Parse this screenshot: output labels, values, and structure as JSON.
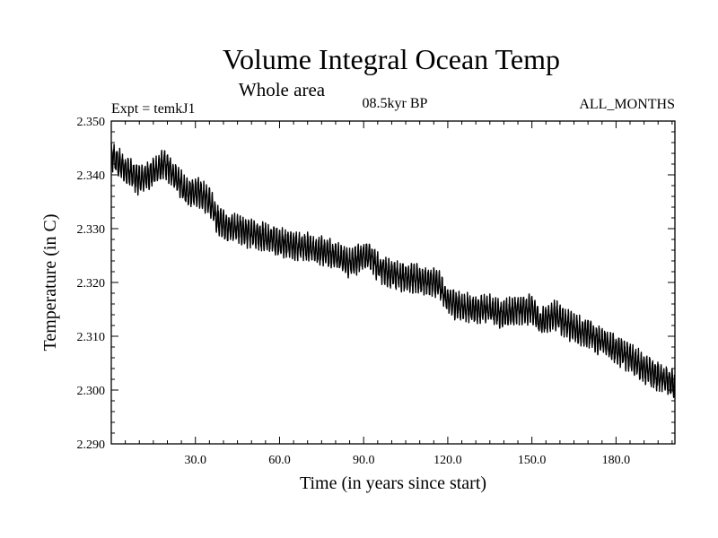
{
  "chart_data": {
    "type": "line",
    "title": "Volume Integral Ocean Temp",
    "subtitle": "Whole area",
    "header_left": "Expt = temkJ1",
    "header_center": "08.5kyr BP",
    "header_right": "ALL_MONTHS",
    "xlabel": "Time (in years since start)",
    "ylabel": "Temperature (in C)",
    "xlim": [
      0,
      201
    ],
    "ylim": [
      2.29,
      2.35
    ],
    "xticks": [
      30,
      60,
      90,
      120,
      150,
      180
    ],
    "xtick_labels": [
      "30.0",
      "60.0",
      "90.0",
      "120.0",
      "150.0",
      "180.0"
    ],
    "yticks": [
      2.29,
      2.3,
      2.31,
      2.32,
      2.33,
      2.34,
      2.35
    ],
    "ytick_labels": [
      "2.290",
      "2.300",
      "2.310",
      "2.320",
      "2.330",
      "2.340",
      "2.350"
    ],
    "series": [
      {
        "name": "Volume integral ocean temperature",
        "seasonal_amplitude": 0.0022,
        "trend_x": [
          0,
          5,
          10,
          15,
          19,
          23,
          27,
          31,
          35,
          38,
          41,
          45,
          50,
          60,
          70,
          80,
          85,
          88,
          92,
          95,
          100,
          110,
          115,
          117,
          120,
          125,
          130,
          135,
          140,
          145,
          150,
          153,
          155,
          158,
          162,
          165,
          170,
          175,
          180,
          185,
          190,
          195,
          201
        ],
        "trend_y": [
          2.3435,
          2.341,
          2.339,
          2.3405,
          2.342,
          2.3395,
          2.3365,
          2.337,
          2.335,
          2.3315,
          2.3305,
          2.33,
          2.329,
          2.3275,
          2.3265,
          2.325,
          2.3235,
          2.3245,
          2.325,
          2.323,
          2.3215,
          2.3205,
          2.32,
          2.3195,
          2.3165,
          2.3155,
          2.315,
          2.315,
          2.314,
          2.315,
          2.315,
          2.3125,
          2.313,
          2.314,
          2.3125,
          2.3115,
          2.3105,
          2.309,
          2.3075,
          2.306,
          2.304,
          2.3025,
          2.301
        ]
      }
    ]
  }
}
